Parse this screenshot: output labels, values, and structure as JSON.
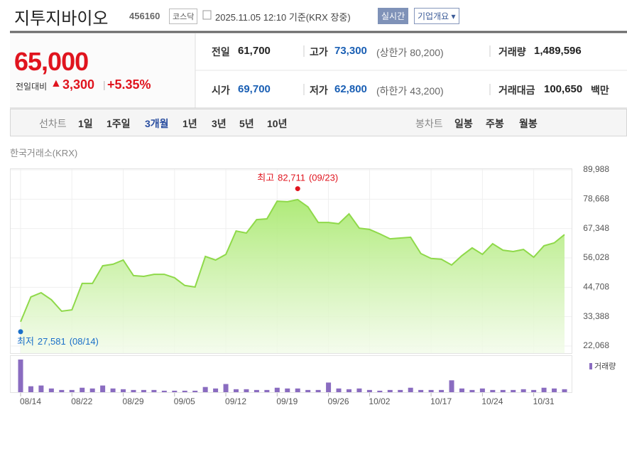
{
  "header": {
    "title": "지투지바이오",
    "code": "456160",
    "market": "코스닥",
    "datetime": "2025.11.05 12:10",
    "basis": "기준(KRX 장중)",
    "realtime_button": "실시간",
    "company_button": "기업개요 ▾"
  },
  "summary": {
    "price": "65,000",
    "change_label": "전일대비",
    "arrow": "▲",
    "change": "3,300",
    "separator": "|",
    "change_rate": "+5.35%",
    "rows": [
      [
        {
          "label": "전일",
          "value": "61,700"
        },
        {
          "label": "고가",
          "value": "73,300",
          "note": "(상한가 80,200)"
        },
        {
          "label": "거래량",
          "value": "1,489,596"
        }
      ],
      [
        {
          "label": "시가",
          "value": "69,700"
        },
        {
          "label": "저가",
          "value": "62,800",
          "note": "(하한가 43,200)"
        },
        {
          "label": "거래대금",
          "value": "100,650",
          "unit": "백만"
        }
      ]
    ]
  },
  "tabs": {
    "line_label": "선차트",
    "line_periods": [
      "1일",
      "1주일",
      "3개월",
      "1년",
      "3년",
      "5년",
      "10년"
    ],
    "selected": "3개월",
    "candle_label": "봉차트",
    "candle_periods": [
      "일봉",
      "주봉",
      "월봉"
    ]
  },
  "source": "한국거래소(KRX)",
  "chart_data": [
    {
      "type": "area",
      "color": "#8fd94a",
      "categories": [
        "08/14",
        null,
        null,
        null,
        null,
        "08/22",
        null,
        null,
        null,
        null,
        "08/29",
        null,
        null,
        null,
        null,
        "09/05",
        null,
        null,
        null,
        null,
        "09/12",
        null,
        null,
        null,
        null,
        "09/19",
        null,
        null,
        null,
        null,
        "09/26",
        null,
        null,
        null,
        "10/02",
        null,
        null,
        null,
        null,
        null,
        "10/17",
        null,
        null,
        null,
        null,
        "10/24",
        null,
        null,
        null,
        null,
        "10/31",
        null,
        null,
        null
      ],
      "values": [
        31400,
        41000,
        42600,
        39900,
        35500,
        36000,
        46200,
        46200,
        53000,
        53600,
        55200,
        49200,
        48900,
        49700,
        49700,
        48400,
        45400,
        44800,
        56600,
        55200,
        57400,
        66400,
        65600,
        70800,
        71100,
        77900,
        77700,
        78500,
        75700,
        69700,
        69700,
        69200,
        73000,
        67500,
        67000,
        65300,
        63400,
        63700,
        64000,
        57700,
        55800,
        55500,
        53300,
        56900,
        59900,
        57400,
        61500,
        59000,
        58500,
        59300,
        56300,
        60700,
        61800,
        65000
      ],
      "ylim": [
        22068,
        89988
      ],
      "yticks": [
        {
          "value": 22068,
          "label": "22,068"
        },
        {
          "value": 33388,
          "label": "33,388"
        },
        {
          "value": 44708,
          "label": "44,708"
        },
        {
          "value": 56028,
          "label": "56,028"
        },
        {
          "value": 67348,
          "label": "67,348"
        },
        {
          "value": 78668,
          "label": "78,668"
        },
        {
          "value": 89988,
          "label": "89,988"
        }
      ],
      "grid": true,
      "annotations": [
        {
          "text": "최고",
          "value": {
            "value": 82711,
            "label": "82,711"
          },
          "date": "(09/23)",
          "color": "#e0141e"
        },
        {
          "text": "최저",
          "value": {
            "value": 27581,
            "label": "27,581"
          },
          "date": "(08/14)",
          "color": "#1a6fc9"
        }
      ]
    },
    {
      "type": "bar",
      "ylim": [
        0,
        4500000
      ],
      "legend": "top-right",
      "series": [
        {
          "name": "거래량",
          "color": "#8a6cc0",
          "values": [
            4400000,
            800000,
            900000,
            500000,
            300000,
            300000,
            600000,
            500000,
            900000,
            500000,
            400000,
            300000,
            300000,
            300000,
            200000,
            200000,
            200000,
            200000,
            700000,
            500000,
            1100000,
            400000,
            400000,
            300000,
            300000,
            600000,
            500000,
            500000,
            300000,
            300000,
            1300000,
            500000,
            400000,
            500000,
            300000,
            200000,
            300000,
            300000,
            600000,
            300000,
            300000,
            300000,
            1600000,
            500000,
            300000,
            500000,
            300000,
            300000,
            300000,
            400000,
            300000,
            600000,
            500000,
            400000
          ]
        }
      ]
    }
  ]
}
